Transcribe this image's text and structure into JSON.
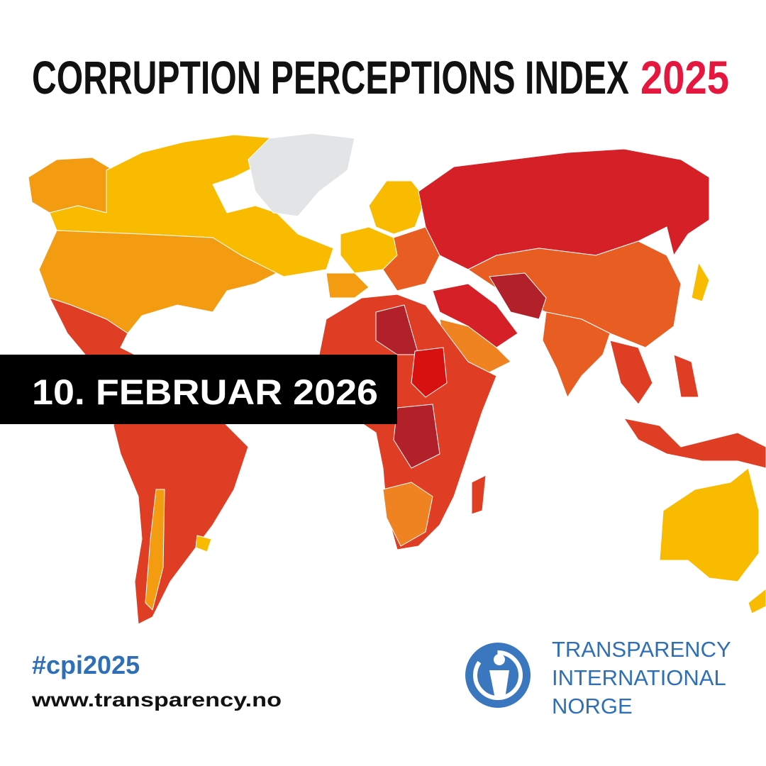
{
  "header": {
    "title": "CORRUPTION PERCEPTIONS INDEX",
    "year": "2025"
  },
  "banner": {
    "date": "10. FEBRUAR 2026"
  },
  "footer": {
    "hashtag": "#cpi2025",
    "url": "www.transparency.no"
  },
  "logo": {
    "lines": [
      "TRANSPARENCY",
      "INTERNATIONAL",
      "NORGE"
    ]
  }
}
